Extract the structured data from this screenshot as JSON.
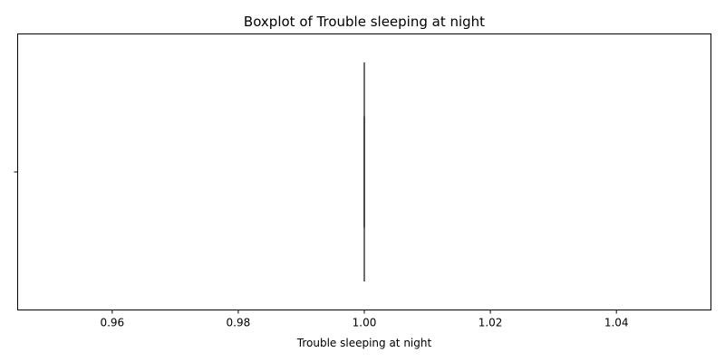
{
  "chart_data": {
    "type": "boxplot",
    "title": "Boxplot of Trouble sleeping at night",
    "xlabel": "Trouble sleeping at night",
    "ylabel": "",
    "orientation": "horizontal",
    "xlim": [
      0.945,
      1.055
    ],
    "x_ticks": [
      0.96,
      0.98,
      1.0,
      1.02,
      1.04
    ],
    "x_tick_labels": [
      "0.96",
      "0.98",
      "1.00",
      "1.02",
      "1.04"
    ],
    "y_tick_labels": [
      ""
    ],
    "grid": false,
    "box": {
      "whisker_low": 1.0,
      "q1": 1.0,
      "median": 1.0,
      "q3": 1.0,
      "whisker_high": 1.0
    },
    "box_color": "#3a70b0",
    "line_color": "#3f3f3f"
  }
}
